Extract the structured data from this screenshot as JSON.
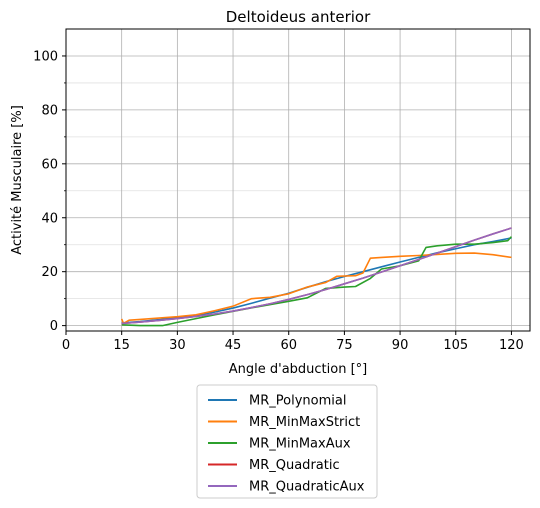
{
  "chart_data": {
    "type": "line",
    "title": "Deltoideus anterior",
    "xlabel": "Angle d'abduction [°]",
    "ylabel": "Activité Musculaire [%]",
    "xlim": [
      0,
      125
    ],
    "ylim": [
      -2,
      110
    ],
    "xticks": [
      0,
      15,
      30,
      45,
      60,
      75,
      90,
      105,
      120
    ],
    "yticks": [
      0,
      20,
      40,
      60,
      80,
      100
    ],
    "yminor_ticks": [
      10,
      30,
      50,
      70,
      90
    ],
    "grid": true,
    "legend_position": "below",
    "series": [
      {
        "name": "MR_Polynomial",
        "color": "#1f77b4",
        "points": [
          [
            15,
            1
          ],
          [
            20,
            1.5
          ],
          [
            25,
            2.2
          ],
          [
            30,
            3
          ],
          [
            35,
            3.8
          ],
          [
            40,
            5
          ],
          [
            45,
            6.5
          ],
          [
            50,
            8.3
          ],
          [
            55,
            10.2
          ],
          [
            60,
            12
          ],
          [
            65,
            14.2
          ],
          [
            70,
            16.3
          ],
          [
            75,
            18.2
          ],
          [
            80,
            20
          ],
          [
            85,
            21.8
          ],
          [
            90,
            23.6
          ],
          [
            95,
            25.3
          ],
          [
            100,
            27
          ],
          [
            105,
            28.5
          ],
          [
            110,
            30
          ],
          [
            115,
            31.2
          ],
          [
            120,
            32.5
          ]
        ]
      },
      {
        "name": "MR_MinMaxStrict",
        "color": "#ff7f0e",
        "points": [
          [
            15,
            2.5
          ],
          [
            15.5,
            0.8
          ],
          [
            17,
            2
          ],
          [
            20,
            2.3
          ],
          [
            25,
            2.8
          ],
          [
            30,
            3.3
          ],
          [
            35,
            4
          ],
          [
            40,
            5.5
          ],
          [
            45,
            7.2
          ],
          [
            50,
            10
          ],
          [
            55,
            10.5
          ],
          [
            60,
            11.8
          ],
          [
            65,
            14.3
          ],
          [
            70,
            16
          ],
          [
            73,
            18.3
          ],
          [
            78,
            18.5
          ],
          [
            80,
            19.5
          ],
          [
            82,
            25
          ],
          [
            85,
            25.3
          ],
          [
            90,
            25.7
          ],
          [
            95,
            26
          ],
          [
            100,
            26.4
          ],
          [
            105,
            26.8
          ],
          [
            110,
            26.9
          ],
          [
            115,
            26.3
          ],
          [
            120,
            25.3
          ]
        ]
      },
      {
        "name": "MR_MinMaxAux",
        "color": "#2ca02c",
        "points": [
          [
            15,
            0.3
          ],
          [
            20,
            0
          ],
          [
            26,
            0
          ],
          [
            30,
            1.2
          ],
          [
            35,
            2.6
          ],
          [
            40,
            4
          ],
          [
            45,
            5.3
          ],
          [
            50,
            6.6
          ],
          [
            55,
            7.8
          ],
          [
            60,
            9
          ],
          [
            65,
            10.3
          ],
          [
            70,
            13.8
          ],
          [
            75,
            14.3
          ],
          [
            78,
            14.5
          ],
          [
            82,
            17.5
          ],
          [
            85,
            21
          ],
          [
            90,
            22.2
          ],
          [
            95,
            24
          ],
          [
            97,
            29
          ],
          [
            100,
            29.6
          ],
          [
            105,
            30.2
          ],
          [
            110,
            30.2
          ],
          [
            115,
            30.8
          ],
          [
            119,
            31.5
          ],
          [
            120,
            33
          ]
        ]
      },
      {
        "name": "MR_Quadratic",
        "color": "#d62728",
        "points": [
          [
            15,
            0.8
          ],
          [
            20,
            1.3
          ],
          [
            25,
            1.9
          ],
          [
            30,
            2.6
          ],
          [
            35,
            3.4
          ],
          [
            40,
            4.3
          ],
          [
            45,
            5.4
          ],
          [
            50,
            6.7
          ],
          [
            55,
            8.1
          ],
          [
            60,
            9.7
          ],
          [
            65,
            11.5
          ],
          [
            70,
            13.4
          ],
          [
            75,
            15.5
          ],
          [
            80,
            17.6
          ],
          [
            85,
            19.9
          ],
          [
            90,
            22.2
          ],
          [
            95,
            24.5
          ],
          [
            100,
            26.9
          ],
          [
            105,
            29.3
          ],
          [
            110,
            31.7
          ],
          [
            115,
            34
          ],
          [
            120,
            36.2
          ]
        ]
      },
      {
        "name": "MR_QuadraticAux",
        "color": "#9467bd",
        "points": [
          [
            15,
            0.8
          ],
          [
            20,
            1.3
          ],
          [
            25,
            1.9
          ],
          [
            30,
            2.6
          ],
          [
            35,
            3.4
          ],
          [
            40,
            4.3
          ],
          [
            45,
            5.4
          ],
          [
            50,
            6.7
          ],
          [
            55,
            8.1
          ],
          [
            60,
            9.7
          ],
          [
            65,
            11.5
          ],
          [
            70,
            13.4
          ],
          [
            75,
            15.5
          ],
          [
            80,
            17.6
          ],
          [
            85,
            19.9
          ],
          [
            90,
            22.2
          ],
          [
            95,
            24.5
          ],
          [
            100,
            26.9
          ],
          [
            105,
            29.3
          ],
          [
            110,
            31.7
          ],
          [
            115,
            34
          ],
          [
            120,
            36.2
          ]
        ]
      }
    ]
  }
}
